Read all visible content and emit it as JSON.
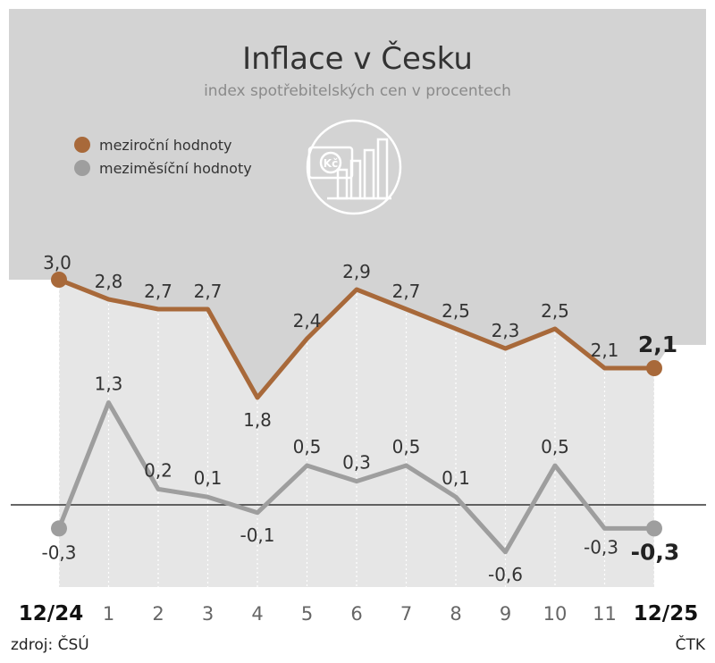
{
  "title": "Inflace v Česku",
  "subtitle": "index spotřebitelských cen v procentech",
  "legend": [
    {
      "label": "meziroční hodnoty",
      "color": "#a8693a"
    },
    {
      "label": "meziměsíční hodnoty",
      "color": "#9e9e9e"
    }
  ],
  "icon": "money-chart-icon",
  "colors": {
    "top_band": "#d3d3d3",
    "lower_band": "#e6e6e6",
    "zero_line": "#333333"
  },
  "chart_data": {
    "type": "line",
    "categories": [
      "12/24",
      "1",
      "2",
      "3",
      "4",
      "5",
      "6",
      "7",
      "8",
      "9",
      "10",
      "11",
      "12/25"
    ],
    "series": [
      {
        "name": "meziroční hodnoty",
        "color": "#a8693a",
        "values": [
          3.0,
          2.8,
          2.7,
          2.7,
          1.8,
          2.4,
          2.9,
          2.7,
          2.5,
          2.3,
          2.5,
          2.1,
          2.1
        ],
        "labels": [
          "3,0",
          "2,8",
          "2,7",
          "2,7",
          "1,8",
          "2,4",
          "2,9",
          "2,7",
          "2,5",
          "2,3",
          "2,5",
          "2,1",
          "2,1"
        ]
      },
      {
        "name": "meziměsíční hodnoty",
        "color": "#9e9e9e",
        "values": [
          -0.3,
          1.3,
          0.2,
          0.1,
          -0.1,
          0.5,
          0.3,
          0.5,
          0.1,
          -0.6,
          0.5,
          -0.3,
          -0.3
        ],
        "labels": [
          "-0,3",
          "1,3",
          "0,2",
          "0,1",
          "-0,1",
          "0,5",
          "0,3",
          "0,5",
          "0,1",
          "-0,6",
          "0,5",
          "-0,3",
          "-0,3"
        ]
      }
    ],
    "bold_categories": [
      "12/24",
      "12/25"
    ],
    "grid": "vertical dotted"
  },
  "footer": {
    "source": "zdroj: ČSÚ",
    "agency": "ČTK"
  }
}
